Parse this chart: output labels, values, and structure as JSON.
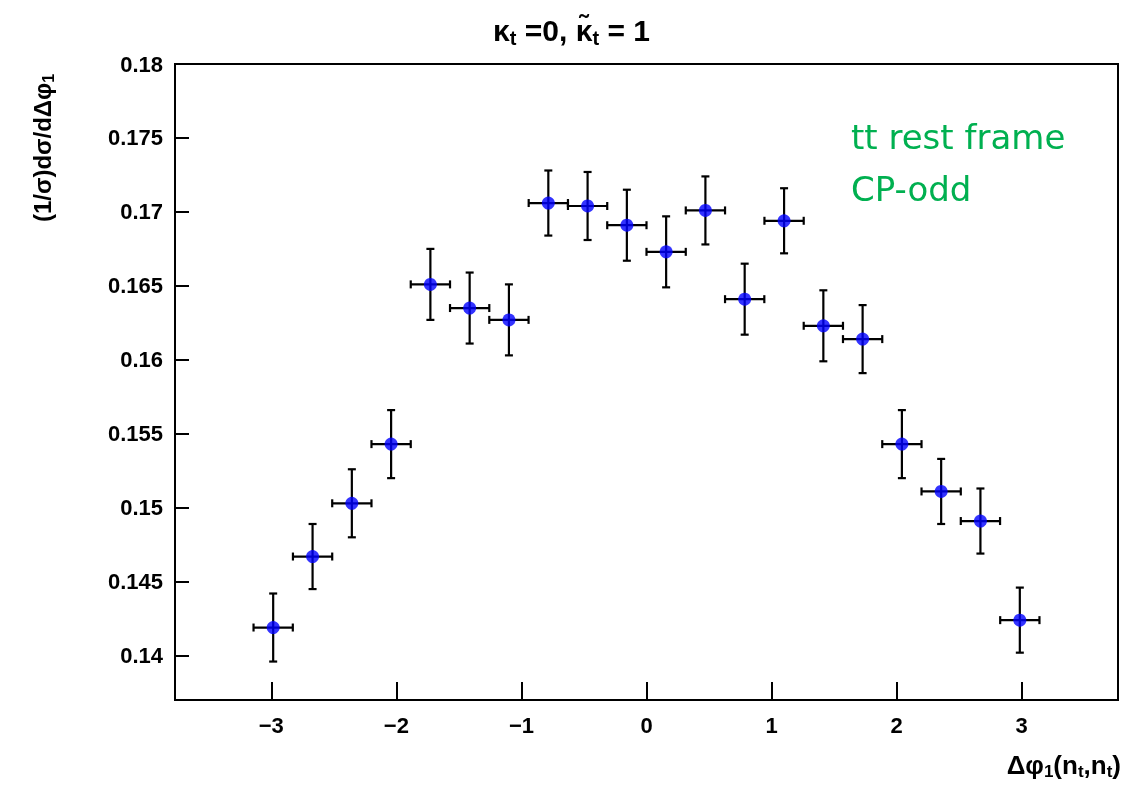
{
  "chart_data": {
    "type": "scatter",
    "title": "κ$_{t}$ =0, κ̃$_{t}$ = 1",
    "xlabel": "Δφ$_{1}$(n$_{t}$,n$_{t}$)",
    "ylabel": "(1/σ)dσ/dΔφ$_{1}$",
    "annotations": [
      "tt rest frame",
      "CP-odd"
    ],
    "x": [
      -2.985,
      -2.67,
      -2.356,
      -2.042,
      -1.728,
      -1.414,
      -1.1,
      -0.785,
      -0.471,
      -0.157,
      0.157,
      0.471,
      0.785,
      1.1,
      1.414,
      1.728,
      2.042,
      2.356,
      2.67,
      2.985
    ],
    "series": [
      {
        "color": "#0000ff",
        "values": [
          0.1419,
          0.1467,
          0.1503,
          0.1543,
          0.1651,
          0.1635,
          0.1627,
          0.1706,
          0.1704,
          0.1691,
          0.1673,
          0.1701,
          0.1641,
          0.1694,
          0.1623,
          0.1614,
          0.1543,
          0.1511,
          0.1491,
          0.1424
        ],
        "errors": [
          0.0023,
          0.0022,
          0.0023,
          0.0023,
          0.0024,
          0.0024,
          0.0024,
          0.0022,
          0.0023,
          0.0024,
          0.0024,
          0.0023,
          0.0024,
          0.0022,
          0.0024,
          0.0023,
          0.0023,
          0.0022,
          0.0022,
          0.0022
        ],
        "xerrors": [
          0.157,
          0.157,
          0.157,
          0.157,
          0.157,
          0.157,
          0.157,
          0.157,
          0.157,
          0.157,
          0.157,
          0.157,
          0.157,
          0.157,
          0.157,
          0.157,
          0.157,
          0.157,
          0.157,
          0.157
        ]
      }
    ],
    "xlim": [
      -3.77,
      3.77
    ],
    "xticks": [
      -3,
      -2,
      -1,
      0,
      1,
      2,
      3
    ],
    "ylim": [
      0.137,
      0.18
    ],
    "yticks": [
      0.14,
      0.145,
      0.15,
      0.155,
      0.16,
      0.165,
      0.17,
      0.175,
      0.18
    ],
    "marker": "circle",
    "grid": false
  }
}
